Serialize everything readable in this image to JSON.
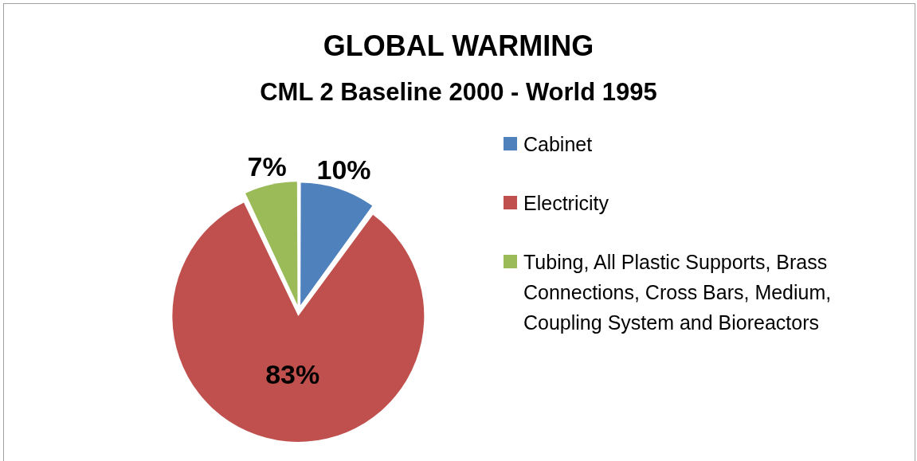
{
  "chart_data": {
    "type": "pie",
    "title": "GLOBAL WARMING",
    "subtitle": "CML 2 Baseline 2000 - World 1995",
    "categories": [
      "Cabinet",
      "Electricity",
      "Tubing, All Plastic Supports, Brass Connections, Cross Bars, Medium, Coupling System and Bioreactors"
    ],
    "values": [
      10,
      83,
      7
    ],
    "colors": [
      "#4f81bd",
      "#c0504d",
      "#9bbb59"
    ],
    "value_labels": [
      "10%",
      "83%",
      "7%"
    ],
    "legend": "right"
  }
}
